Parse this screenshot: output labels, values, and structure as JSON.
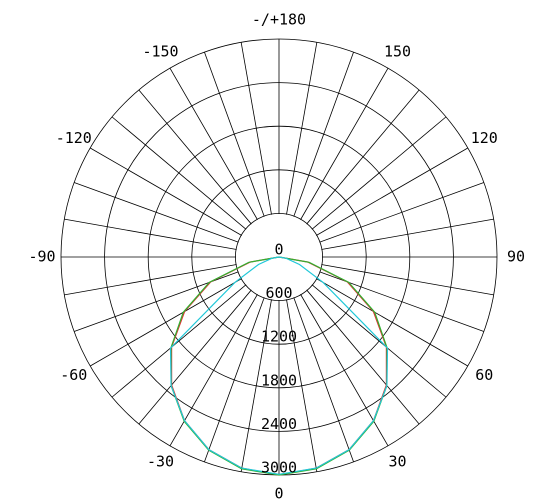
{
  "chart_data": {
    "type": "polar",
    "x": [
      -90,
      -80,
      -70,
      -60,
      -50,
      -40,
      -30,
      -20,
      -10,
      0,
      10,
      20,
      30,
      40,
      50,
      60,
      70,
      80,
      90
    ],
    "series": [
      {
        "color": "#e03030",
        "values": [
          0,
          400,
          1000,
          1500,
          1930,
          2300,
          2600,
          2820,
          2950,
          3000,
          2950,
          2820,
          2600,
          2300,
          1930,
          1500,
          1000,
          400,
          0
        ]
      },
      {
        "color": "#30b030",
        "values": [
          0,
          420,
          1020,
          1520,
          1940,
          2310,
          2610,
          2830,
          2960,
          3000,
          2960,
          2830,
          2610,
          2310,
          1940,
          1520,
          1020,
          420,
          0
        ]
      },
      {
        "color": "#20c8d8",
        "values": [
          0,
          100,
          300,
          700,
          1950,
          2310,
          2600,
          2820,
          2950,
          2990,
          2950,
          2820,
          2600,
          2310,
          1950,
          700,
          300,
          100,
          0
        ]
      }
    ],
    "rlim": [
      0,
      3000
    ],
    "rticks": [
      0,
      600,
      1200,
      1800,
      2400,
      3000
    ],
    "angle_step": 10,
    "angle_ticks": [
      0,
      30,
      60,
      90,
      120,
      150,
      {
        "value": 180,
        "label": "-/+180"
      },
      -150,
      -120,
      -90,
      -60,
      -30
    ]
  }
}
